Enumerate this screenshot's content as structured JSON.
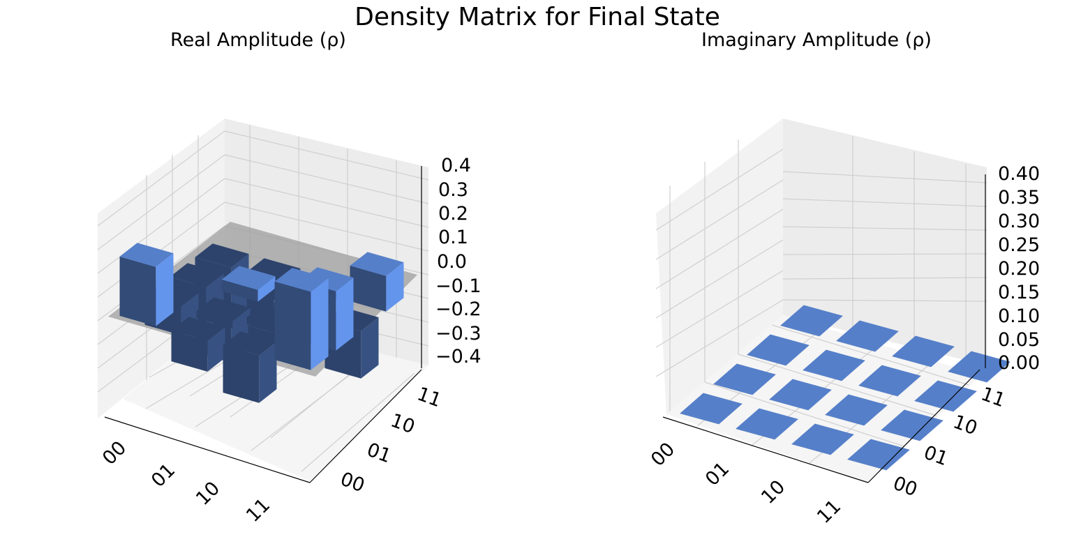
{
  "title": "Density Matrix for Final State",
  "colors": {
    "positive": "#6495ED",
    "negative": "#6495ED"
  },
  "chart_data": [
    {
      "type": "bar3d",
      "title": "Real Amplitude (ρ)",
      "row_labels": [
        "00",
        "01",
        "10",
        "11"
      ],
      "col_labels": [
        "00",
        "01",
        "10",
        "11"
      ],
      "zlim": [
        -0.45,
        0.4
      ],
      "zticks": [
        "0.4",
        "0.3",
        "0.2",
        "0.1",
        "0.0",
        "−0.1",
        "−0.2",
        "−0.3",
        "−0.4"
      ],
      "matrix": [
        [
          0.25,
          -0.12,
          -0.18,
          -0.4
        ],
        [
          -0.13,
          -0.03,
          0.05,
          -0.22
        ],
        [
          -0.2,
          -0.04,
          0.02,
          -0.02
        ],
        [
          0.33,
          0.25,
          -0.2,
          0.15
        ]
      ]
    },
    {
      "type": "bar3d",
      "title": "Imaginary Amplitude (ρ)",
      "row_labels": [
        "00",
        "01",
        "10",
        "11"
      ],
      "col_labels": [
        "00",
        "01",
        "10",
        "11"
      ],
      "zlim": [
        0,
        0.4
      ],
      "zticks": [
        "0.40",
        "0.35",
        "0.30",
        "0.25",
        "0.20",
        "0.15",
        "0.10",
        "0.05",
        "0.00"
      ],
      "matrix": [
        [
          0,
          0,
          0,
          0
        ],
        [
          0,
          0,
          0,
          0
        ],
        [
          0,
          0,
          0,
          0
        ],
        [
          0,
          0,
          0,
          0
        ]
      ]
    }
  ]
}
